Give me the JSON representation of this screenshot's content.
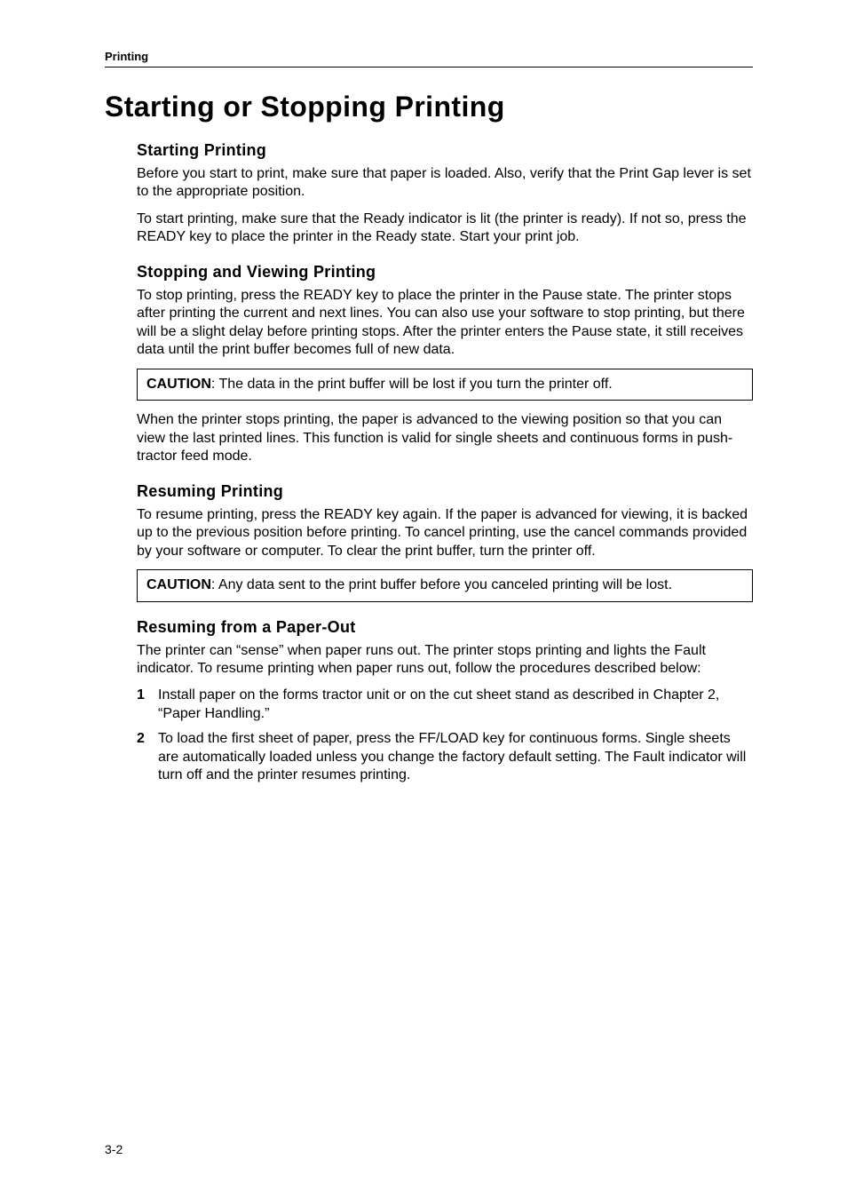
{
  "header": {
    "section": "Printing"
  },
  "title": "Starting or Stopping Printing",
  "sections": {
    "starting": {
      "heading": "Starting Printing",
      "p1": "Before you start to print, make sure that paper is loaded. Also, verify that the Print Gap lever is set to the appropriate position.",
      "p2": "To start printing, make sure that the Ready indicator is lit (the printer is ready). If not so, press the READY key to place the printer in the Ready state. Start your print job."
    },
    "stopping": {
      "heading": "Stopping and Viewing Printing",
      "p1": "To stop printing, press the READY key to place the printer in the Pause state. The printer stops after printing the current and next lines. You can also use your software to stop printing, but there will be a slight delay before printing stops. After the printer enters the Pause state, it still receives data until the print buffer becomes full of new data.",
      "caution_label": "CAUTION",
      "caution": ":  The data in the print buffer will be lost if you turn the printer off.",
      "p2": "When the printer stops printing, the paper is advanced to the viewing position so that you can view the last printed lines. This function is valid for single sheets and continuous forms in push-tractor feed mode."
    },
    "resuming": {
      "heading": "Resuming Printing",
      "p1": "To resume printing, press the READY key again. If the paper is advanced for viewing, it is backed up to the previous position before printing. To cancel printing, use the cancel commands provided by your software or computer. To clear the print buffer, turn the printer off.",
      "caution_label": "CAUTION",
      "caution": ":  Any data sent to the print buffer before you canceled printing will be lost."
    },
    "paperout": {
      "heading": "Resuming from a Paper-Out",
      "p1": "The printer can “sense” when paper runs out. The printer stops printing and lights the Fault indicator. To resume printing when paper runs out, follow the procedures described below:",
      "items": [
        {
          "num": "1",
          "text": "Install paper on the forms tractor unit or on the cut sheet stand as described in Chapter 2, “Paper Handling.”"
        },
        {
          "num": "2",
          "text": "To load the first sheet of paper, press the FF/LOAD key for continuous forms. Single sheets are automatically loaded unless you change the factory default setting. The Fault indicator will turn off and the printer resumes printing."
        }
      ]
    }
  },
  "footer": {
    "page": "3-2"
  },
  "styles": {
    "body_font_size": 16,
    "heading_font_size": 18,
    "title_font_size": 32,
    "header_font_size": 13,
    "text_color": "#000000",
    "background_color": "#ffffff",
    "rule_color": "#000000"
  }
}
